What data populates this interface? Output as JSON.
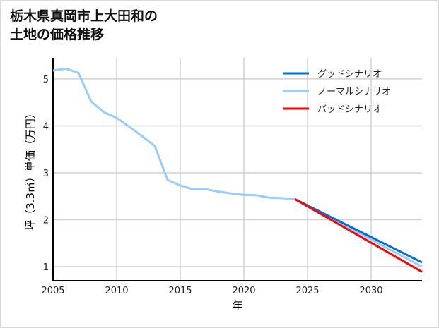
{
  "title_line1": "栃木県真岡市上大田和の",
  "title_line2": "土地の価格推移",
  "chart_data": {
    "type": "line",
    "title": "栃木県真岡市上大田和の土地の価格推移",
    "xlabel": "年",
    "ylabel": "坪（3.3㎡）単価（万円）",
    "xlim": [
      2005,
      2034
    ],
    "ylim": [
      0.7,
      5.45
    ],
    "xticks": [
      2005,
      2010,
      2015,
      2020,
      2025,
      2030
    ],
    "yticks": [
      1,
      2,
      3,
      4,
      5
    ],
    "grid": true,
    "legend_position": "top-right",
    "series": [
      {
        "name": "グッドシナリオ",
        "color": "#0070d0",
        "x": [
          2024,
          2034
        ],
        "y": [
          2.44,
          1.09
        ]
      },
      {
        "name": "ノーマルシナリオ",
        "color": "#99ccff",
        "x": [
          2005,
          2006,
          2007,
          2008,
          2009,
          2010,
          2011,
          2012,
          2013,
          2014,
          2015,
          2016,
          2017,
          2018,
          2019,
          2020,
          2021,
          2022,
          2023,
          2024,
          2034
        ],
        "y": [
          5.18,
          5.22,
          5.13,
          4.52,
          4.29,
          4.17,
          3.98,
          3.78,
          3.57,
          2.85,
          2.73,
          2.65,
          2.65,
          2.6,
          2.56,
          2.53,
          2.52,
          2.47,
          2.46,
          2.44,
          1.0
        ]
      },
      {
        "name": "バッドシナリオ",
        "color": "#ff0000",
        "x": [
          2024,
          2034
        ],
        "y": [
          2.44,
          0.89
        ]
      }
    ]
  }
}
